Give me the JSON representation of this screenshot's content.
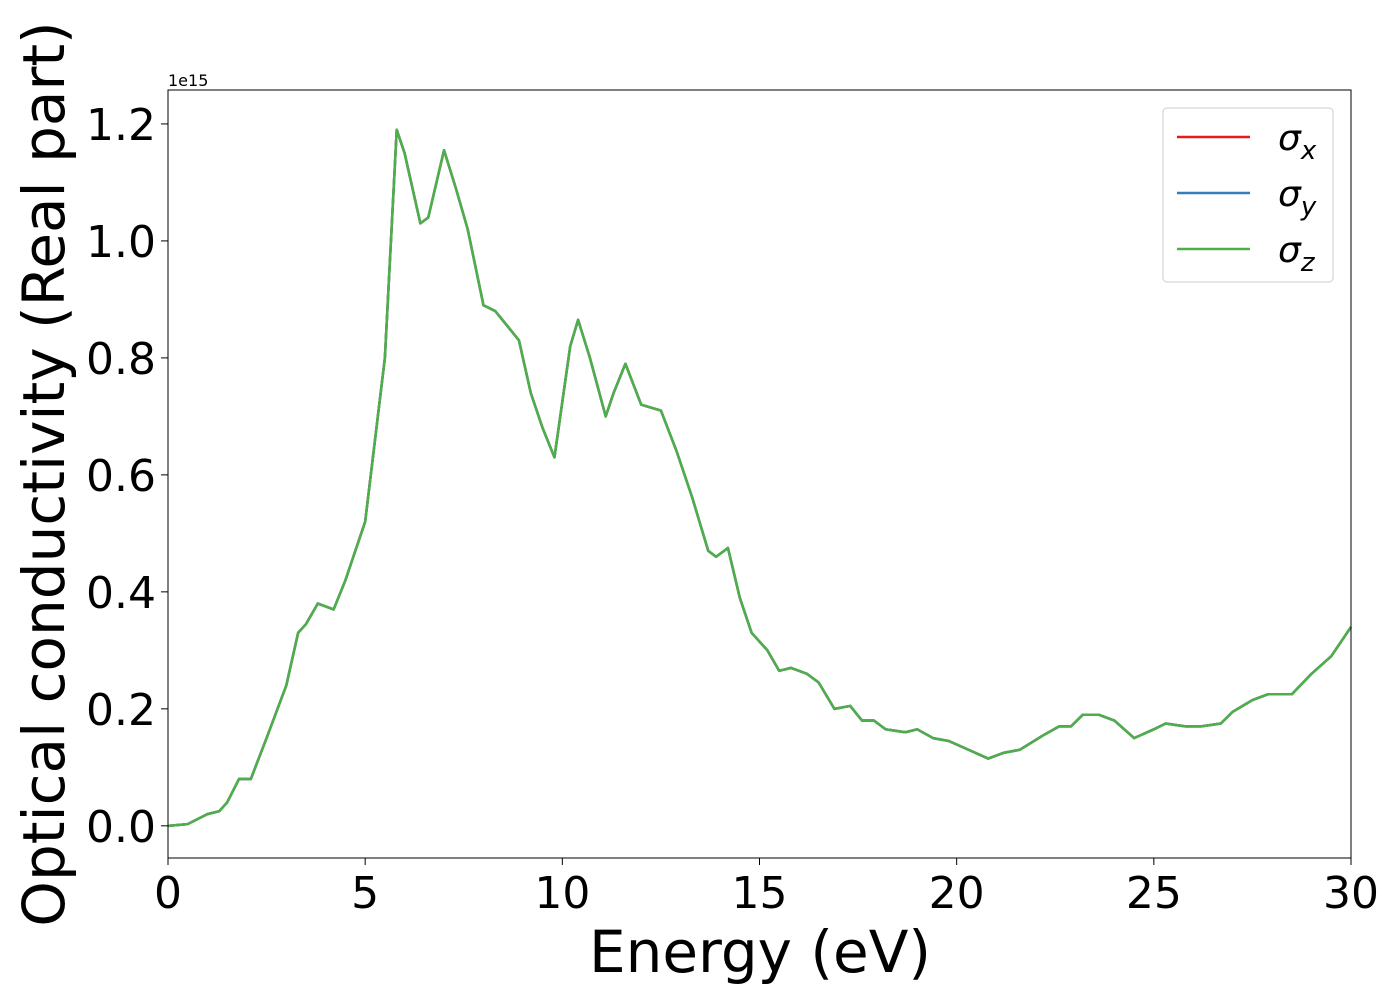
{
  "chart_data": {
    "type": "line",
    "ylabel": "Optical conductivity (Real part)",
    "xlabel": "Energy (eV)",
    "y_offset_label": "1e15",
    "x": [
      0,
      0.5,
      1,
      1.3,
      1.5,
      1.8,
      2.1,
      2.5,
      3,
      3.3,
      3.5,
      3.8,
      4.2,
      4.5,
      5,
      5.5,
      5.8,
      6,
      6.4,
      6.6,
      7,
      7.3,
      7.6,
      8,
      8.3,
      8.6,
      8.9,
      9.2,
      9.5,
      9.8,
      10.2,
      10.4,
      10.7,
      11.1,
      11.3,
      11.6,
      12,
      12.5,
      12.9,
      13.3,
      13.7,
      13.9,
      14.2,
      14.5,
      14.8,
      15.2,
      15.5,
      15.8,
      16.2,
      16.5,
      16.9,
      17.3,
      17.6,
      17.9,
      18.2,
      18.7,
      19,
      19.4,
      19.8,
      20.3,
      20.8,
      21.2,
      21.6,
      22.2,
      22.6,
      22.9,
      23.2,
      23.6,
      24,
      24.5,
      25,
      25.3,
      25.8,
      26.2,
      26.7,
      27,
      27.5,
      27.9,
      28.5,
      29,
      29.5,
      30
    ],
    "series": [
      {
        "name": "σ_x",
        "color": "#e41a1c",
        "values": [
          0,
          0.003,
          0.02,
          0.025,
          0.04,
          0.08,
          0.08,
          0.15,
          0.24,
          0.33,
          0.345,
          0.38,
          0.37,
          0.42,
          0.52,
          0.8,
          1.19,
          1.15,
          1.03,
          1.04,
          1.155,
          1.09,
          1.02,
          0.89,
          0.88,
          0.855,
          0.83,
          0.74,
          0.68,
          0.63,
          0.82,
          0.865,
          0.8,
          0.7,
          0.74,
          0.79,
          0.72,
          0.71,
          0.64,
          0.56,
          0.47,
          0.46,
          0.475,
          0.39,
          0.33,
          0.3,
          0.265,
          0.27,
          0.26,
          0.245,
          0.2,
          0.205,
          0.18,
          0.18,
          0.165,
          0.16,
          0.165,
          0.15,
          0.145,
          0.13,
          0.115,
          0.125,
          0.13,
          0.155,
          0.17,
          0.17,
          0.19,
          0.19,
          0.18,
          0.15,
          0.165,
          0.175,
          0.17,
          0.17,
          0.175,
          0.195,
          0.215,
          0.225,
          0.225,
          0.26,
          0.29,
          0.34
        ]
      },
      {
        "name": "σ_y",
        "color": "#377eb8",
        "values": [
          0,
          0.003,
          0.02,
          0.025,
          0.04,
          0.08,
          0.08,
          0.15,
          0.24,
          0.33,
          0.345,
          0.38,
          0.37,
          0.42,
          0.52,
          0.8,
          1.19,
          1.15,
          1.03,
          1.04,
          1.155,
          1.09,
          1.02,
          0.89,
          0.88,
          0.855,
          0.83,
          0.74,
          0.68,
          0.63,
          0.82,
          0.865,
          0.8,
          0.7,
          0.74,
          0.79,
          0.72,
          0.71,
          0.64,
          0.56,
          0.47,
          0.46,
          0.475,
          0.39,
          0.33,
          0.3,
          0.265,
          0.27,
          0.26,
          0.245,
          0.2,
          0.205,
          0.18,
          0.18,
          0.165,
          0.16,
          0.165,
          0.15,
          0.145,
          0.13,
          0.115,
          0.125,
          0.13,
          0.155,
          0.17,
          0.17,
          0.19,
          0.19,
          0.18,
          0.15,
          0.165,
          0.175,
          0.17,
          0.17,
          0.175,
          0.195,
          0.215,
          0.225,
          0.225,
          0.26,
          0.29,
          0.34
        ]
      },
      {
        "name": "σ_z",
        "color": "#4daf4a",
        "values": [
          0,
          0.003,
          0.02,
          0.025,
          0.04,
          0.08,
          0.08,
          0.15,
          0.24,
          0.33,
          0.345,
          0.38,
          0.37,
          0.42,
          0.52,
          0.8,
          1.19,
          1.15,
          1.03,
          1.04,
          1.155,
          1.09,
          1.02,
          0.89,
          0.88,
          0.855,
          0.83,
          0.74,
          0.68,
          0.63,
          0.82,
          0.865,
          0.8,
          0.7,
          0.74,
          0.79,
          0.72,
          0.71,
          0.64,
          0.56,
          0.47,
          0.46,
          0.475,
          0.39,
          0.33,
          0.3,
          0.265,
          0.27,
          0.26,
          0.245,
          0.2,
          0.205,
          0.18,
          0.18,
          0.165,
          0.16,
          0.165,
          0.15,
          0.145,
          0.13,
          0.115,
          0.125,
          0.13,
          0.155,
          0.17,
          0.17,
          0.19,
          0.19,
          0.18,
          0.15,
          0.165,
          0.175,
          0.17,
          0.17,
          0.175,
          0.195,
          0.215,
          0.225,
          0.225,
          0.26,
          0.29,
          0.34
        ]
      }
    ],
    "xlim": [
      0,
      30
    ],
    "xticks": [
      0,
      5,
      10,
      15,
      20,
      25,
      30
    ],
    "ylim": [
      -0.055,
      1.258
    ],
    "yticks": [
      {
        "value": 0,
        "label": "0.0"
      },
      0.2,
      0.4,
      0.6,
      0.8,
      {
        "value": 1,
        "label": "1.0"
      },
      1.2
    ],
    "grid": false,
    "legend": "upper right"
  }
}
